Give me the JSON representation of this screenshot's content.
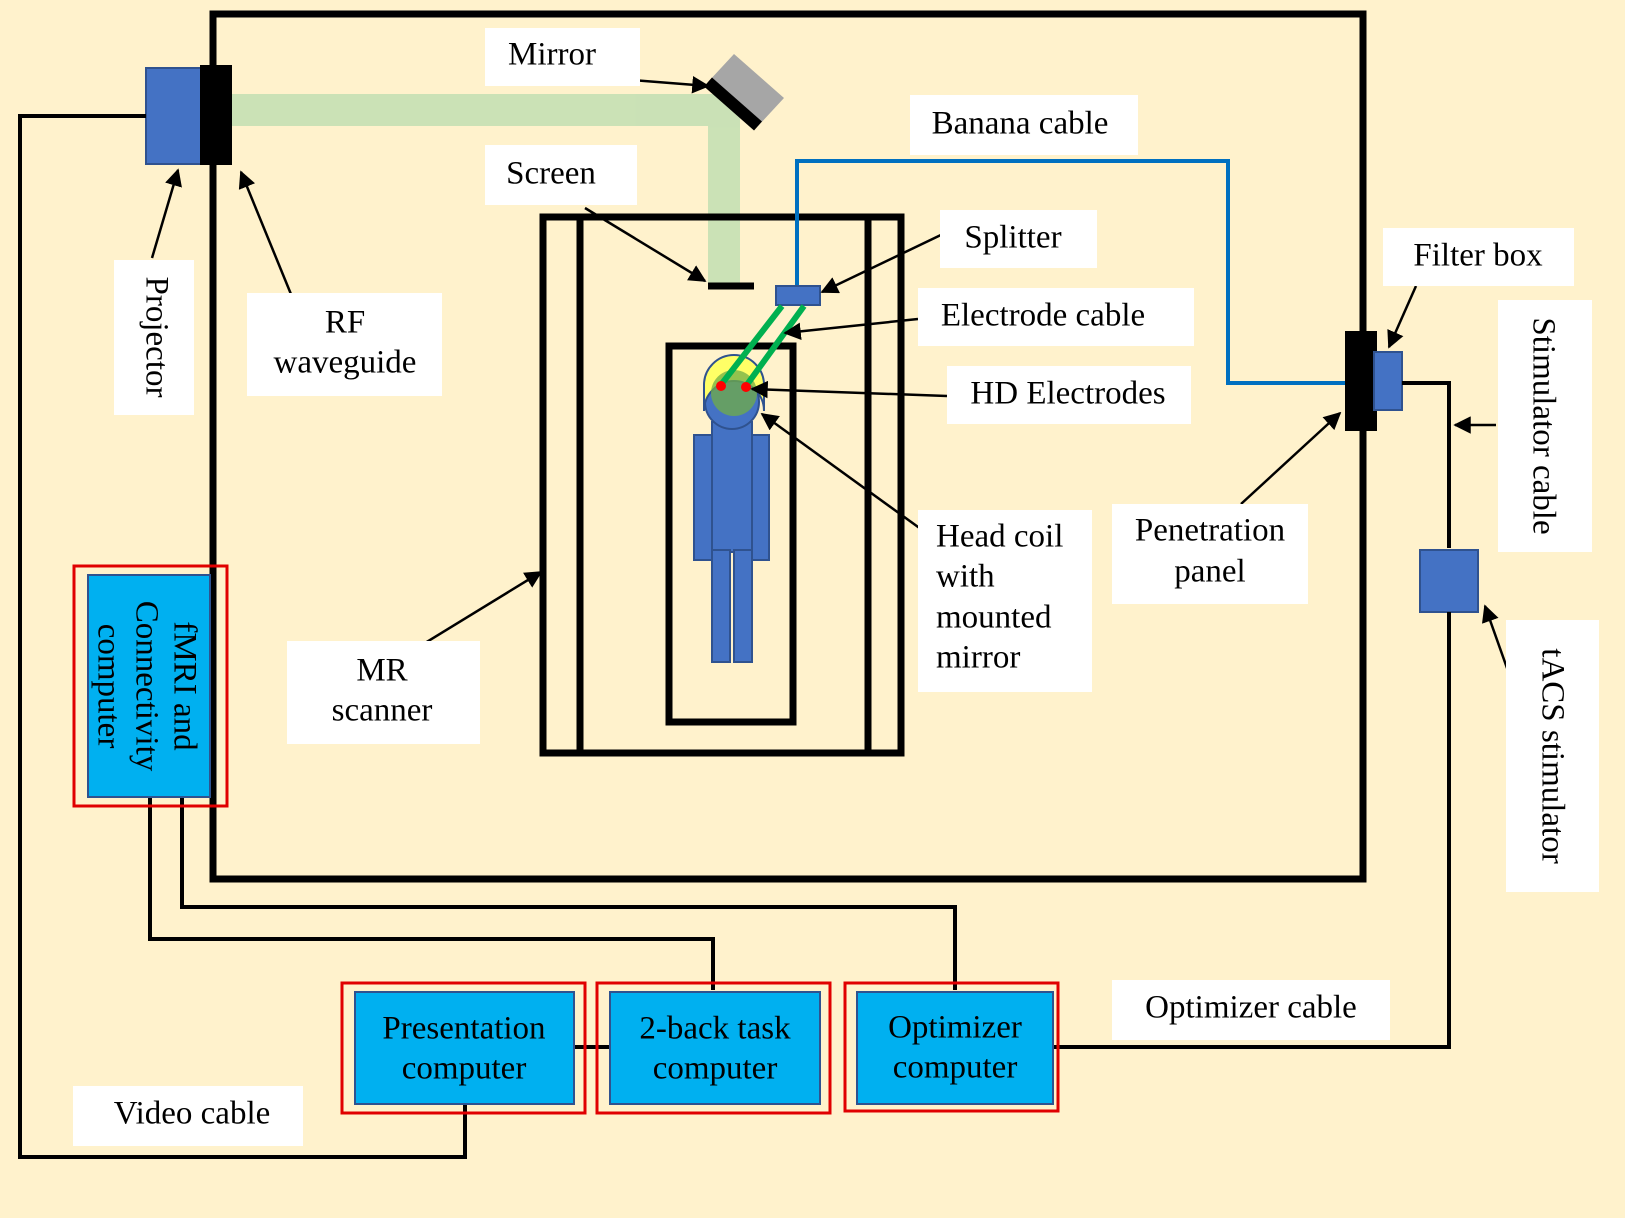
{
  "colors": {
    "background": "#FFF2CC",
    "label_box": "#FFFFFF",
    "device_blue": "#4472C4",
    "computer_blue": "#00B0F0",
    "highlight_red": "#E00000",
    "banana_cable": "#0070C0",
    "electrode_cable": "#00B050",
    "light_path": "#C5E0B4",
    "electrode_dot": "#FF0000",
    "head_coil": "#FFFF66"
  },
  "labels": {
    "mirror": "Mirror",
    "banana_cable": "Banana cable",
    "screen": "Screen",
    "splitter": "Splitter",
    "electrode_cable": "Electrode cable",
    "hd_electrodes": "HD Electrodes",
    "filter_box": "Filter box",
    "projector": "Projector",
    "rf_waveguide": [
      "RF",
      "waveguide"
    ],
    "head_coil": [
      "Head coil",
      "with",
      "mounted",
      "mirror"
    ],
    "penetration_panel": [
      "Penetration",
      "panel"
    ],
    "mr_scanner": [
      "MR",
      "scanner"
    ],
    "stimulator_cable": "Stimulator cable",
    "tacs_stimulator": "tACS stimulator",
    "optimizer_cable": "Optimizer cable",
    "video_cable": "Video cable"
  },
  "computers": {
    "fmri": [
      "fMRI and",
      "Connectivity",
      "computer"
    ],
    "presentation": [
      "Presentation",
      "computer"
    ],
    "twoback": [
      "2-back task",
      "computer"
    ],
    "optimizer": [
      "Optimizer",
      "computer"
    ]
  }
}
